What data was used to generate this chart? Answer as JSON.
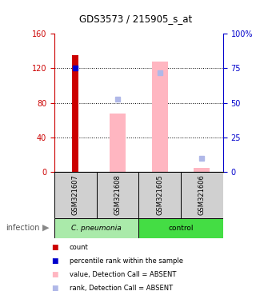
{
  "title": "GDS3573 / 215905_s_at",
  "samples": [
    "GSM321607",
    "GSM321608",
    "GSM321605",
    "GSM321606"
  ],
  "ylim_left": [
    0,
    160
  ],
  "yticks_left": [
    0,
    40,
    80,
    120,
    160
  ],
  "ytick_labels_left": [
    "0",
    "40",
    "80",
    "120",
    "160"
  ],
  "ytick_labels_right": [
    "0",
    "25",
    "50",
    "75",
    "100%"
  ],
  "count_bar": [
    135,
    0,
    0,
    0
  ],
  "percentile_dot": [
    120,
    0,
    0,
    0
  ],
  "absent_value_bar": [
    0,
    68,
    128,
    5
  ],
  "absent_rank_dot": [
    0,
    84,
    115,
    16
  ],
  "bar_color_value": "#ffb6c1",
  "bar_color_count": "#cc0000",
  "dot_color_percentile": "#0000cc",
  "dot_color_rank_absent": "#b0b8e8",
  "sample_bg_color": "#d0d0d0",
  "group1_color": "#aaeaaa",
  "group2_color": "#44dd44",
  "left_axis_color": "#cc0000",
  "right_axis_color": "#0000cc",
  "infection_label": "infection",
  "group1_label": "C. pneumonia",
  "group2_label": "control"
}
